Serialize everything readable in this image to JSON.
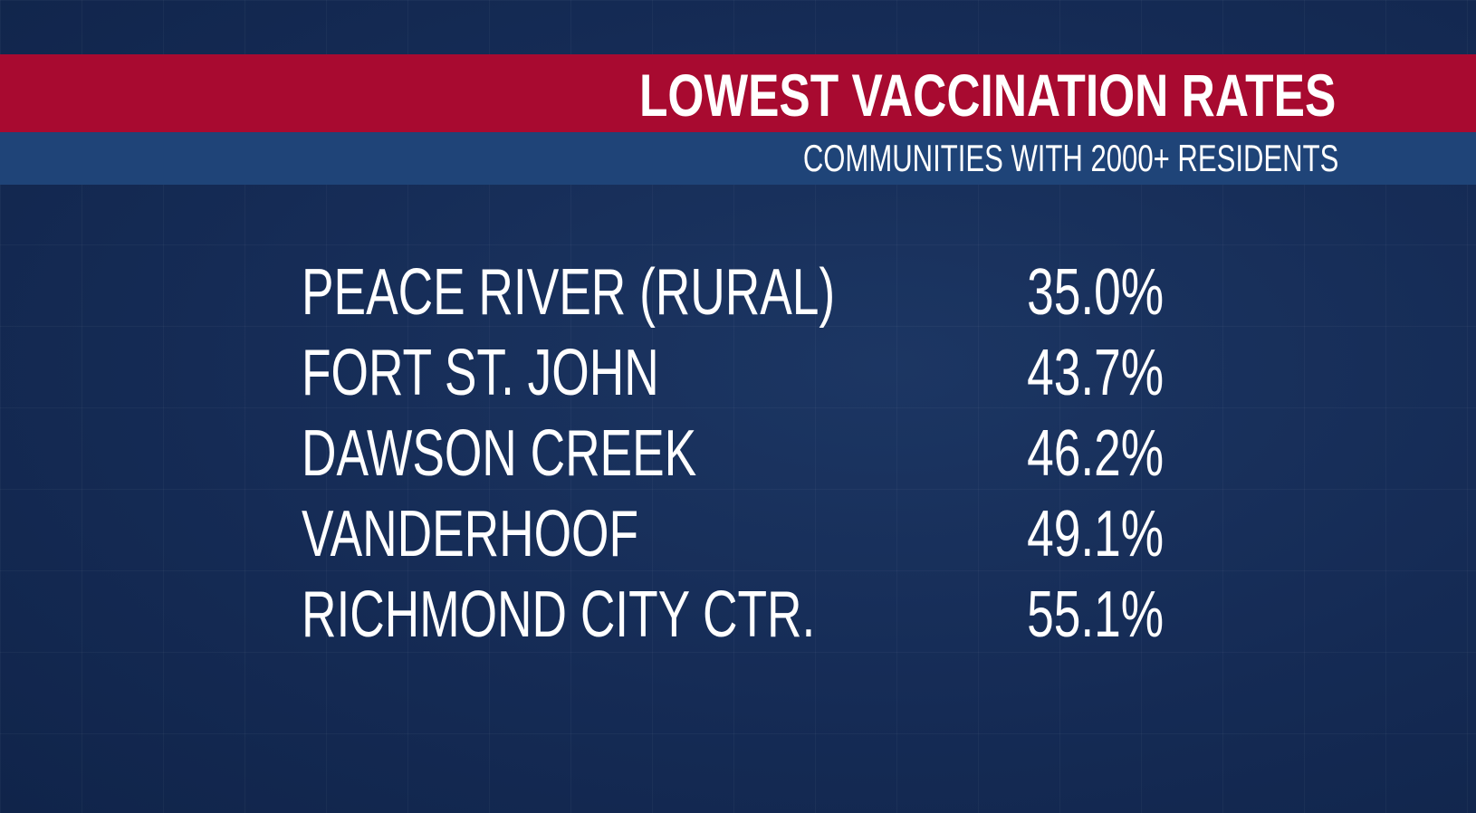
{
  "header": {
    "title": "LOWEST VACCINATION RATES",
    "subtitle": "COMMUNITIES WITH 2000+ RESIDENTS"
  },
  "table": {
    "rows": [
      [
        "PEACE RIVER (RURAL)",
        "35.0%"
      ],
      [
        "FORT ST. JOHN",
        "43.7%"
      ],
      [
        "DAWSON CREEK",
        "46.2%"
      ],
      [
        "VANDERHOOF",
        "49.1%"
      ],
      [
        "RICHMOND CITY CTR.",
        "55.1%"
      ]
    ]
  }
}
